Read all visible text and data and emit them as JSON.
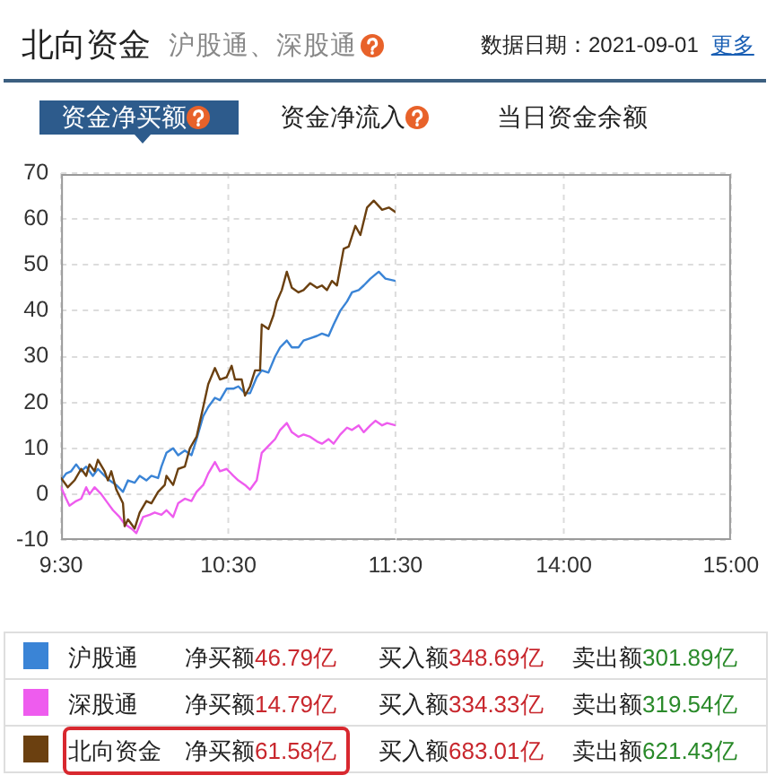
{
  "chart_data": [
    {
      "type": "line",
      "title": "北向资金",
      "subtitle": "沪股通、深股通",
      "series": [
        {
          "name": "沪股通",
          "color": "#3a84d6",
          "x": [
            9.5,
            9.53,
            9.56,
            9.59,
            9.62,
            9.65,
            9.69,
            9.72,
            9.76,
            9.79,
            9.83,
            9.87,
            9.9,
            9.94,
            9.97,
            10.01,
            10.04,
            10.08,
            10.1,
            10.13,
            10.17,
            10.2,
            10.24,
            10.28,
            10.31,
            10.35,
            10.38,
            10.42,
            10.45,
            10.49,
            10.53,
            10.56,
            10.6,
            10.63,
            10.67,
            10.7,
            10.74,
            10.78,
            10.81,
            10.85,
            10.88,
            10.92,
            10.95,
            10.99,
            11.03,
            11.06,
            11.1,
            11.13,
            11.17,
            11.21,
            11.24,
            11.28,
            11.31,
            11.35,
            11.4,
            11.44,
            11.5
          ],
          "values": [
            3,
            4.5,
            5,
            6.5,
            5,
            6,
            4,
            5.5,
            4,
            3,
            2,
            0.5,
            3,
            2.5,
            4,
            3,
            4,
            3.5,
            6,
            9,
            10,
            8.5,
            9.5,
            8.5,
            12,
            17,
            19,
            21,
            20.5,
            23,
            23,
            23.5,
            22,
            22,
            25.5,
            27,
            26.5,
            30,
            32,
            33.5,
            32,
            32,
            33.5,
            34,
            34.5,
            35,
            34.5,
            37,
            40,
            42,
            44,
            44.5,
            45.5,
            47,
            48.5,
            47,
            46.5
          ]
        },
        {
          "name": "深股通",
          "color": "#ee5cee",
          "x": [
            9.5,
            9.53,
            9.55,
            9.59,
            9.62,
            9.65,
            9.67,
            9.7,
            9.74,
            9.78,
            9.81,
            9.85,
            9.88,
            9.92,
            9.95,
            9.99,
            10.03,
            10.06,
            10.1,
            10.13,
            10.17,
            10.2,
            10.24,
            10.28,
            10.31,
            10.35,
            10.38,
            10.42,
            10.45,
            10.49,
            10.53,
            10.56,
            10.6,
            10.63,
            10.67,
            10.7,
            10.74,
            10.78,
            10.81,
            10.85,
            10.88,
            10.92,
            10.95,
            10.99,
            11.03,
            11.06,
            11.1,
            11.13,
            11.17,
            11.21,
            11.24,
            11.28,
            11.31,
            11.35,
            11.38,
            11.42,
            11.45,
            11.5
          ],
          "values": [
            1.5,
            -1,
            -2.5,
            -1.5,
            -1,
            1.5,
            0,
            1.5,
            0,
            -2,
            -3.5,
            -5,
            -6.5,
            -7.5,
            -8.5,
            -5,
            -4.5,
            -4,
            -4.5,
            -3.5,
            -5,
            -2,
            -1,
            -1.5,
            0.5,
            2,
            4.5,
            7,
            5,
            5.5,
            4,
            3,
            2,
            1,
            3,
            9,
            10.5,
            12,
            14,
            15.5,
            13.5,
            12.5,
            13,
            12.5,
            11.5,
            11,
            12,
            11,
            13,
            14.5,
            14,
            15,
            13.5,
            15,
            16,
            15,
            15.5,
            15
          ]
        },
        {
          "name": "北向资金",
          "color": "#6b4010",
          "x": [
            9.5,
            9.54,
            9.58,
            9.62,
            9.65,
            9.67,
            9.7,
            9.72,
            9.76,
            9.78,
            9.8,
            9.83,
            9.87,
            9.88,
            9.9,
            9.94,
            9.97,
            10.01,
            10.04,
            10.08,
            10.12,
            10.13,
            10.17,
            10.2,
            10.24,
            10.27,
            10.31,
            10.35,
            10.38,
            10.42,
            10.45,
            10.49,
            10.52,
            10.54,
            10.58,
            10.6,
            10.63,
            10.66,
            10.69,
            10.7,
            10.74,
            10.77,
            10.79,
            10.82,
            10.85,
            10.88,
            10.92,
            10.95,
            10.99,
            11.03,
            11.06,
            11.09,
            11.12,
            11.15,
            11.19,
            11.22,
            11.26,
            11.29,
            11.33,
            11.37,
            11.42,
            11.46,
            11.5
          ],
          "values": [
            3.5,
            1.5,
            3,
            5.5,
            4,
            6.5,
            5,
            7.5,
            5,
            3,
            5,
            1,
            -2,
            -7,
            -5.5,
            -7.5,
            -4,
            -1.5,
            -2,
            0.5,
            2,
            4,
            2,
            5.5,
            6,
            10,
            12.5,
            19,
            24,
            27.5,
            25,
            25.5,
            28,
            25,
            25,
            21.5,
            23.5,
            27,
            27,
            37,
            36,
            39,
            42,
            44.5,
            48.5,
            45,
            44,
            44.5,
            46,
            45,
            45.5,
            44.5,
            46.5,
            45.5,
            53.5,
            54,
            58.5,
            56.5,
            62.5,
            64,
            62,
            62.5,
            61.5
          ]
        }
      ],
      "xlim": [
        9.5,
        11.5
      ],
      "xticks": [
        {
          "value": 9.5,
          "label": "9:30"
        },
        {
          "value": 10.5,
          "label": "10:30"
        },
        {
          "value": 11.5,
          "label": "11:30"
        }
      ],
      "ylim": [
        -10,
        70
      ],
      "yticks": [
        -10,
        0,
        10,
        20,
        30,
        40,
        50,
        60,
        70
      ],
      "grid": true,
      "legend": "bottom",
      "marker": "none",
      "line_style": "solid",
      "annotations": [
        "数据日期：2021-09-01",
        "更多",
        "资金净买额",
        "资金净流入",
        "当日资金余额",
        "净买额46.79亿",
        "买入额348.69亿",
        "卖出额301.89亿",
        "净买额14.79亿",
        "买入额334.33亿",
        "卖出额319.54亿",
        "净买额61.58亿",
        "买入额683.01亿",
        "卖出额621.43亿"
      ]
    },
    {
      "type": "line",
      "xlim": [
        13,
        15
      ],
      "xticks": [
        {
          "value": 14,
          "label": "14:00"
        },
        {
          "value": 15,
          "label": "15:00"
        }
      ],
      "ylim": [
        -10,
        70
      ],
      "yticks": [
        -10,
        0,
        10,
        20,
        30,
        40,
        50,
        60,
        70
      ],
      "grid": true,
      "tick_labels": "x"
    }
  ]
}
